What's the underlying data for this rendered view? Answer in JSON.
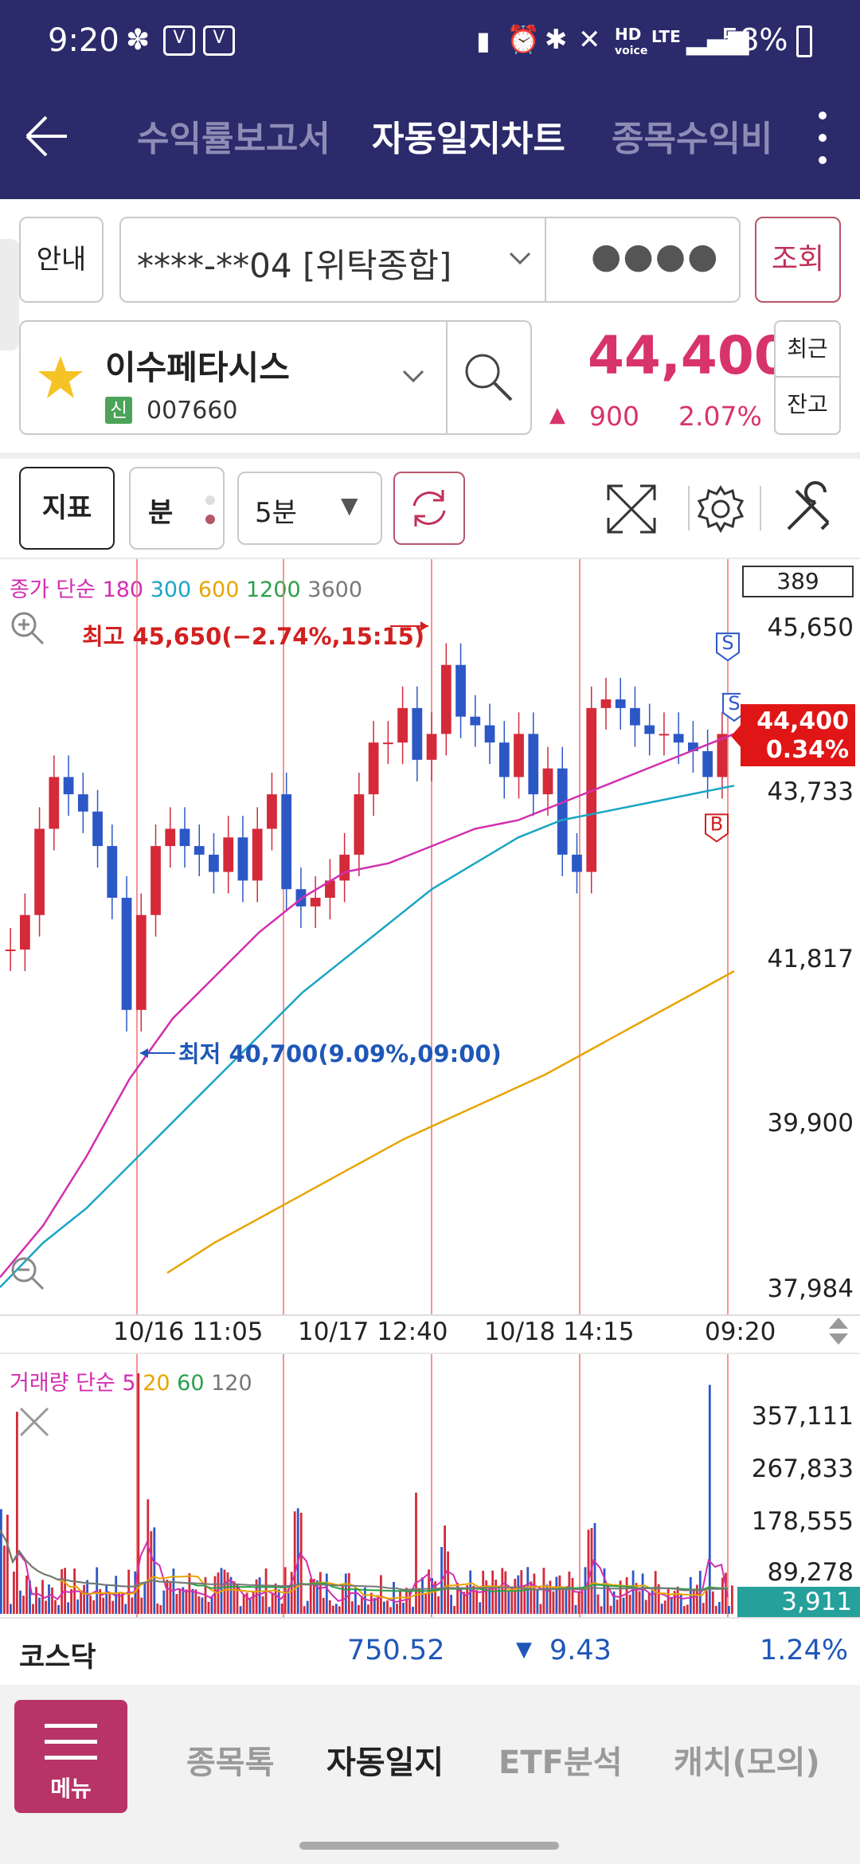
{
  "status": {
    "time": "9:20",
    "battery": "58%",
    "net1": "HD",
    "net1_sub": "voice",
    "net2": "LTE"
  },
  "appbar": {
    "tabs": [
      "수익률보고서",
      "자동일지차트",
      "종목수익비"
    ],
    "active_tab": 1
  },
  "account": {
    "guide_label": "안내",
    "account_number": "****-**04 [위탁종합]",
    "password_mask": "●●●●",
    "query_label": "조회"
  },
  "stock": {
    "name": "이수페타시스",
    "badge": "신",
    "code": "007660",
    "price": "44,400",
    "change": "900",
    "change_pct": "2.07%",
    "recent_label": "최근",
    "balance_label": "잔고"
  },
  "toolbar": {
    "indicator_label": "지표",
    "minute_label": "분",
    "interval_value": "5분"
  },
  "chart_data": [
    {
      "type": "line",
      "title": "",
      "legend": [
        "종가",
        "단순",
        "180",
        "300",
        "600",
        "1200",
        "3600"
      ],
      "legend_colors": [
        "#d22fb0",
        "#d22fb0",
        "#d22fb0",
        "#1aa6c4",
        "#e8a400",
        "#2aa04a",
        "#777777"
      ],
      "y_ticks": [
        "45,650",
        "43,733",
        "41,817",
        "39,900",
        "37,984"
      ],
      "ylim": [
        37984,
        45650
      ],
      "x_ticks": [
        "10/16 11:05",
        "10/17 12:40",
        "10/18 14:15",
        "09:20"
      ],
      "top_box_value": "389",
      "high_annotation": "최고 45,650(−2.74%,15:15)",
      "low_annotation": "최저 40,700(9.09%,09:00)",
      "current_price_label": "44,400",
      "current_pct_label": "0.34%",
      "markers": [
        "S",
        "S",
        "B"
      ],
      "candles_close": [
        41900,
        42300,
        43300,
        43900,
        43700,
        43500,
        43100,
        42500,
        41200,
        42300,
        43100,
        43300,
        43100,
        43000,
        42800,
        43200,
        42700,
        43300,
        43700,
        42600,
        42400,
        42500,
        42700,
        43000,
        43700,
        44300,
        44300,
        44700,
        44100,
        44400,
        45200,
        44600,
        44500,
        44300,
        43900,
        44400,
        43700,
        44000,
        43000,
        42800,
        44700,
        44800,
        44700,
        44500,
        44400,
        44400,
        44300,
        44200,
        43900,
        44400
      ],
      "series": [
        {
          "name": "180",
          "color": "#d22fb0",
          "values": [
            38100,
            38700,
            39500,
            40400,
            41100,
            41600,
            42100,
            42500,
            42800,
            42900,
            43100,
            43300,
            43400,
            43600,
            43800,
            44000,
            44200,
            44400
          ]
        },
        {
          "name": "300",
          "color": "#1aa6c4",
          "values": [
            37984,
            38500,
            38900,
            39400,
            39900,
            40400,
            40900,
            41400,
            41800,
            42200,
            42600,
            42900,
            43200,
            43400,
            43500,
            43600,
            43700,
            43800
          ]
        },
        {
          "name": "600",
          "color": "#e8a400",
          "values": [
            38150,
            38500,
            38800,
            39100,
            39400,
            39700,
            39950,
            40200,
            40450,
            40750,
            41050,
            41350,
            41650
          ]
        }
      ]
    },
    {
      "type": "bar",
      "title": "",
      "legend": [
        "거래량",
        "단순",
        "5",
        "20",
        "60",
        "120"
      ],
      "legend_colors": [
        "#d22fb0",
        "#d22fb0",
        "#d22fb0",
        "#e8a400",
        "#2aa04a",
        "#777777"
      ],
      "y_ticks": [
        "357,111",
        "267,833",
        "178,555",
        "89,278"
      ],
      "ylim": [
        0,
        357111
      ],
      "current_volume_label": "3,911"
    }
  ],
  "index_bar": {
    "name": "코스닥",
    "value": "750.52",
    "change": "9.43",
    "change_pct": "1.24%"
  },
  "bottom_nav": {
    "menu_label": "메뉴",
    "items": [
      "종목톡",
      "자동일지",
      "ETF분석",
      "캐치(모의)"
    ],
    "active_index": 1
  }
}
